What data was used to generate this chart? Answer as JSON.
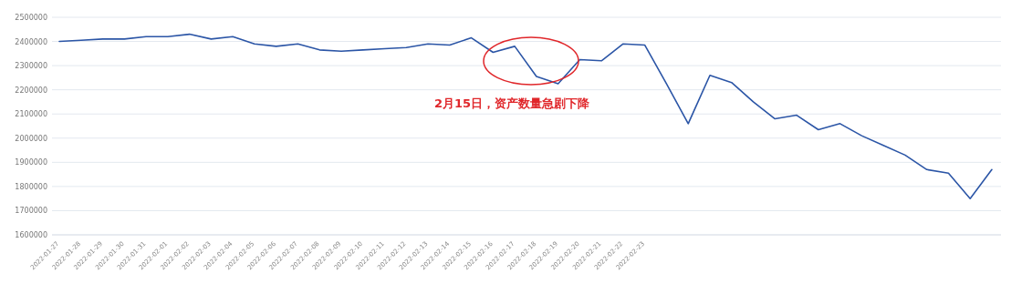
{
  "chart_data": {
    "type": "line",
    "categories": [
      "2022-01-27",
      "2022-01-28",
      "2022-01-29",
      "2022-01-30",
      "2022-01-31",
      "2022-02-01",
      "2022-02-02",
      "2022-02-03",
      "2022-02-04",
      "2022-02-05",
      "2022-02-06",
      "2022-02-07",
      "2022-02-08",
      "2022-02-09",
      "2022-02-10",
      "2022-02-11",
      "2022-02-12",
      "2022-02-13",
      "2022-02-14",
      "2022-02-15",
      "2022-02-16",
      "2022-02-17",
      "2022-02-18",
      "2022-02-19",
      "2022-02-20",
      "2022-02-21",
      "2022-02-22",
      "2022-02-23",
      null,
      null,
      null,
      null,
      null,
      null,
      null,
      null,
      null,
      null,
      null,
      null,
      null,
      null,
      null,
      null
    ],
    "series": [
      {
        "color": "#2b55a6",
        "values": [
          2400000,
          2405000,
          2410000,
          2410000,
          2420000,
          2420000,
          2430000,
          2410000,
          2420000,
          2390000,
          2380000,
          2390000,
          2365000,
          2360000,
          2365000,
          2370000,
          2375000,
          2390000,
          2385000,
          2415000,
          2355000,
          2380000,
          2255000,
          2225000,
          2325000,
          2320000,
          2390000,
          2385000,
          2225000,
          2060000,
          2260000,
          2230000,
          2150000,
          2080000,
          2095000,
          2035000,
          2060000,
          2010000,
          1970000,
          1930000,
          1870000,
          1855000,
          1750000,
          1870000
        ]
      }
    ],
    "ylim": [
      1600000,
      2500000
    ],
    "yticks": [
      1600000,
      1700000,
      1800000,
      1900000,
      2000000,
      2100000,
      2200000,
      2300000,
      2400000,
      2500000
    ],
    "grid": "y",
    "marker": "none",
    "line_style": "solid",
    "annotations": [
      "2月15日，资产数量急剧下降"
    ]
  }
}
